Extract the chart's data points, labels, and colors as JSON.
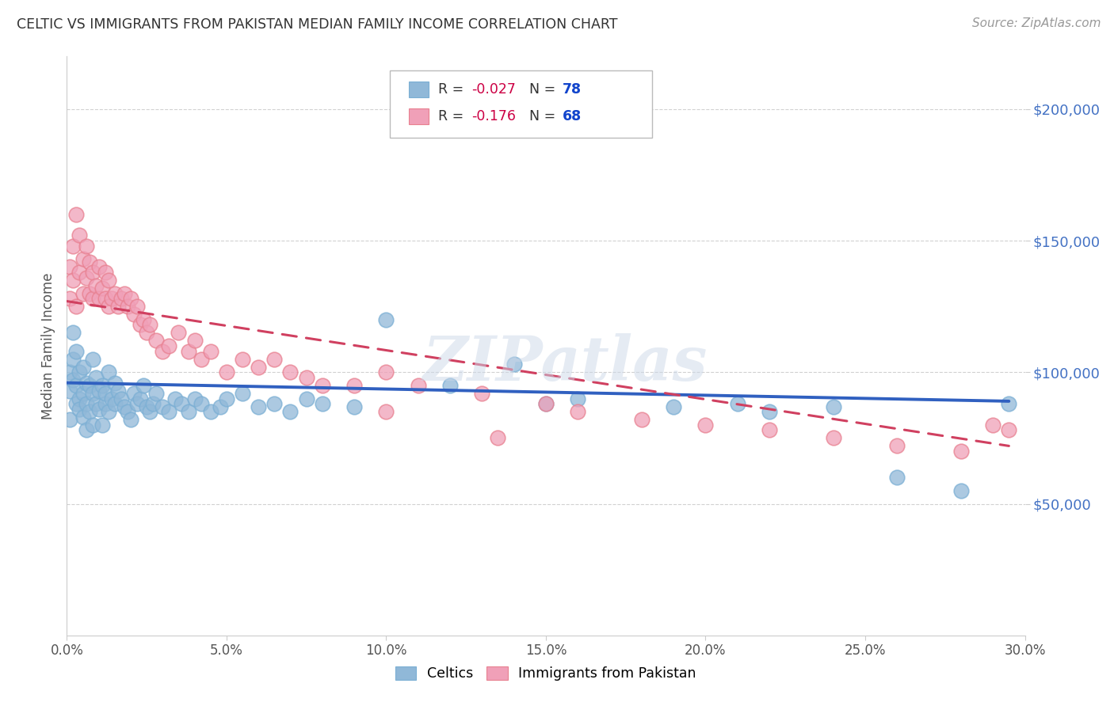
{
  "title": "CELTIC VS IMMIGRANTS FROM PAKISTAN MEDIAN FAMILY INCOME CORRELATION CHART",
  "source": "Source: ZipAtlas.com",
  "ylabel": "Median Family Income",
  "ytick_labels": [
    "$50,000",
    "$100,000",
    "$150,000",
    "$200,000"
  ],
  "ytick_values": [
    50000,
    100000,
    150000,
    200000
  ],
  "ylim": [
    0,
    220000
  ],
  "xlim": [
    0.0,
    0.3
  ],
  "xtick_positions": [
    0.0,
    0.05,
    0.1,
    0.15,
    0.2,
    0.25,
    0.3
  ],
  "xtick_labels": [
    "0.0%",
    "5.0%",
    "10.0%",
    "15.0%",
    "20.0%",
    "25.0%",
    "30.0%"
  ],
  "watermark": "ZIPatlas",
  "celtics_color": "#90b8d8",
  "pakistan_color": "#f0a0b8",
  "celtics_edge_color": "#7bafd4",
  "pakistan_edge_color": "#e88090",
  "celtics_line_color": "#3060c0",
  "pakistan_line_color": "#d04060",
  "celtics_scatter_x": [
    0.001,
    0.001,
    0.001,
    0.002,
    0.002,
    0.002,
    0.003,
    0.003,
    0.003,
    0.004,
    0.004,
    0.004,
    0.005,
    0.005,
    0.005,
    0.006,
    0.006,
    0.006,
    0.007,
    0.007,
    0.008,
    0.008,
    0.008,
    0.009,
    0.009,
    0.01,
    0.01,
    0.011,
    0.011,
    0.012,
    0.012,
    0.013,
    0.013,
    0.014,
    0.015,
    0.015,
    0.016,
    0.017,
    0.018,
    0.019,
    0.02,
    0.021,
    0.022,
    0.023,
    0.024,
    0.025,
    0.026,
    0.027,
    0.028,
    0.03,
    0.032,
    0.034,
    0.036,
    0.038,
    0.04,
    0.042,
    0.045,
    0.048,
    0.05,
    0.055,
    0.06,
    0.065,
    0.07,
    0.075,
    0.08,
    0.09,
    0.1,
    0.12,
    0.14,
    0.15,
    0.16,
    0.19,
    0.21,
    0.22,
    0.24,
    0.26,
    0.28,
    0.295
  ],
  "celtics_scatter_y": [
    93000,
    100000,
    82000,
    97000,
    105000,
    115000,
    88000,
    95000,
    108000,
    90000,
    86000,
    100000,
    83000,
    92000,
    102000,
    88000,
    96000,
    78000,
    85000,
    95000,
    105000,
    80000,
    92000,
    88000,
    98000,
    86000,
    93000,
    80000,
    95000,
    88000,
    92000,
    85000,
    100000,
    90000,
    88000,
    96000,
    93000,
    90000,
    87000,
    85000,
    82000,
    92000,
    88000,
    90000,
    95000,
    87000,
    85000,
    88000,
    92000,
    87000,
    85000,
    90000,
    88000,
    85000,
    90000,
    88000,
    85000,
    87000,
    90000,
    92000,
    87000,
    88000,
    85000,
    90000,
    88000,
    87000,
    120000,
    95000,
    103000,
    88000,
    90000,
    87000,
    88000,
    85000,
    87000,
    60000,
    55000,
    88000
  ],
  "pakistan_scatter_x": [
    0.001,
    0.001,
    0.002,
    0.002,
    0.003,
    0.003,
    0.004,
    0.004,
    0.005,
    0.005,
    0.006,
    0.006,
    0.007,
    0.007,
    0.008,
    0.008,
    0.009,
    0.01,
    0.01,
    0.011,
    0.012,
    0.012,
    0.013,
    0.013,
    0.014,
    0.015,
    0.016,
    0.017,
    0.018,
    0.019,
    0.02,
    0.021,
    0.022,
    0.023,
    0.024,
    0.025,
    0.026,
    0.028,
    0.03,
    0.032,
    0.035,
    0.038,
    0.04,
    0.042,
    0.045,
    0.05,
    0.055,
    0.06,
    0.065,
    0.07,
    0.075,
    0.08,
    0.09,
    0.1,
    0.11,
    0.13,
    0.15,
    0.16,
    0.18,
    0.2,
    0.22,
    0.24,
    0.26,
    0.28,
    0.29,
    0.295,
    0.135,
    0.1
  ],
  "pakistan_scatter_y": [
    128000,
    140000,
    135000,
    148000,
    125000,
    160000,
    138000,
    152000,
    130000,
    143000,
    136000,
    148000,
    130000,
    142000,
    128000,
    138000,
    133000,
    140000,
    128000,
    132000,
    128000,
    138000,
    125000,
    135000,
    128000,
    130000,
    125000,
    128000,
    130000,
    125000,
    128000,
    122000,
    125000,
    118000,
    120000,
    115000,
    118000,
    112000,
    108000,
    110000,
    115000,
    108000,
    112000,
    105000,
    108000,
    100000,
    105000,
    102000,
    105000,
    100000,
    98000,
    95000,
    95000,
    100000,
    95000,
    92000,
    88000,
    85000,
    82000,
    80000,
    78000,
    75000,
    72000,
    70000,
    80000,
    78000,
    75000,
    85000
  ],
  "celtics_line": {
    "x0": 0.0,
    "x1": 0.295,
    "y0": 96000,
    "y1": 89000
  },
  "pakistan_line": {
    "x0": 0.0,
    "x1": 0.295,
    "y0": 127000,
    "y1": 72000
  },
  "background_color": "#ffffff",
  "grid_color": "#cccccc",
  "title_color": "#333333",
  "ytick_color": "#4472c4",
  "legend_R_color": "#cc0044",
  "legend_N_color": "#1144cc"
}
